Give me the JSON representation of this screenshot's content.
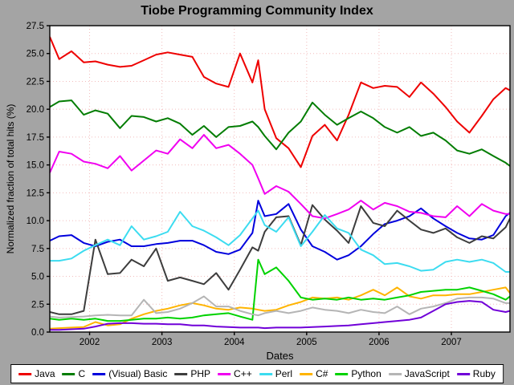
{
  "window": {
    "title": "Tiobe Programming Community Index"
  },
  "colors": {
    "background": "#a4a4a4",
    "plot_background": "#ffffff",
    "gridline": "#f2bcbc",
    "axis": "#000000"
  },
  "chart_data": {
    "type": "line",
    "title": "Tiobe Programming Community Index",
    "xlabel": "Dates",
    "ylabel": "Normalized fraction of total hits (%)",
    "xlim": [
      2001.45,
      2007.81
    ],
    "ylim": [
      0,
      27.5
    ],
    "xticks": [
      2002,
      2003,
      2004,
      2005,
      2006,
      2007
    ],
    "yticks": [
      0.0,
      2.5,
      5.0,
      7.5,
      10.0,
      12.5,
      15.0,
      17.5,
      20.0,
      22.5,
      25.0,
      27.5
    ],
    "grid": true,
    "legend_position": "bottom",
    "x": [
      2001.45,
      2001.58,
      2001.75,
      2001.92,
      2002.08,
      2002.25,
      2002.42,
      2002.58,
      2002.75,
      2002.92,
      2003.08,
      2003.25,
      2003.42,
      2003.58,
      2003.75,
      2003.92,
      2004.08,
      2004.25,
      2004.33,
      2004.42,
      2004.58,
      2004.75,
      2004.92,
      2005.08,
      2005.25,
      2005.42,
      2005.58,
      2005.75,
      2005.92,
      2006.08,
      2006.25,
      2006.42,
      2006.58,
      2006.75,
      2006.92,
      2007.08,
      2007.25,
      2007.42,
      2007.58,
      2007.75,
      2007.81
    ],
    "series": [
      {
        "name": "Java",
        "color": "#ee0000",
        "values": [
          26.5,
          24.5,
          25.2,
          24.2,
          24.3,
          24.0,
          23.8,
          23.9,
          24.4,
          24.9,
          25.1,
          24.9,
          24.7,
          22.9,
          22.3,
          22.0,
          25.0,
          22.4,
          24.4,
          20.0,
          17.4,
          16.5,
          14.8,
          17.6,
          18.6,
          17.2,
          19.5,
          22.4,
          21.9,
          22.1,
          22.0,
          21.1,
          22.4,
          21.4,
          20.2,
          18.9,
          17.9,
          19.4,
          20.9,
          21.9,
          21.7
        ]
      },
      {
        "name": "C",
        "color": "#037d03",
        "values": [
          20.2,
          20.7,
          20.8,
          19.5,
          19.9,
          19.6,
          18.3,
          19.4,
          19.3,
          18.9,
          19.2,
          18.7,
          17.7,
          18.5,
          17.5,
          18.4,
          18.5,
          18.9,
          18.4,
          17.6,
          16.4,
          17.9,
          18.9,
          20.6,
          19.5,
          18.6,
          19.2,
          19.8,
          19.2,
          18.4,
          17.9,
          18.4,
          17.6,
          17.9,
          17.2,
          16.3,
          16.0,
          16.4,
          15.8,
          15.2,
          14.9
        ]
      },
      {
        "name": "(Visual) Basic",
        "color": "#0000dd",
        "values": [
          8.2,
          8.6,
          8.7,
          8.0,
          7.7,
          8.1,
          8.3,
          7.7,
          7.7,
          7.9,
          8.0,
          8.2,
          8.2,
          7.8,
          7.2,
          7.0,
          7.4,
          8.9,
          11.8,
          10.4,
          10.6,
          11.5,
          9.2,
          7.7,
          7.2,
          6.5,
          6.9,
          7.7,
          8.8,
          9.7,
          10.0,
          10.4,
          11.1,
          10.2,
          9.5,
          8.9,
          8.4,
          8.3,
          8.7,
          10.4,
          10.7
        ]
      },
      {
        "name": "PHP",
        "color": "#3d3d3d",
        "values": [
          1.8,
          1.6,
          1.6,
          1.9,
          8.3,
          5.2,
          5.3,
          6.5,
          5.9,
          7.5,
          4.6,
          4.9,
          4.6,
          4.3,
          5.3,
          3.8,
          5.6,
          7.6,
          7.3,
          9.0,
          10.3,
          10.4,
          7.8,
          11.4,
          10.1,
          9.1,
          8.0,
          11.3,
          9.8,
          9.5,
          10.9,
          10.0,
          9.2,
          8.9,
          9.3,
          8.5,
          8.0,
          8.6,
          8.4,
          9.4,
          10.2
        ]
      },
      {
        "name": "C++",
        "color": "#f000f0",
        "values": [
          14.3,
          16.2,
          16.0,
          15.3,
          15.1,
          14.7,
          15.8,
          14.5,
          15.4,
          16.3,
          16.0,
          17.3,
          16.5,
          17.7,
          16.5,
          16.8,
          16.0,
          15.0,
          13.8,
          12.4,
          13.1,
          12.6,
          11.5,
          10.4,
          10.2,
          10.6,
          11.0,
          11.8,
          11.0,
          11.6,
          11.3,
          10.8,
          10.7,
          10.4,
          10.3,
          11.3,
          10.4,
          11.5,
          10.9,
          10.6,
          10.6
        ]
      },
      {
        "name": "Perl",
        "color": "#3cdcf0",
        "values": [
          6.4,
          6.4,
          6.6,
          7.3,
          7.8,
          8.3,
          7.8,
          9.5,
          8.3,
          8.6,
          9.0,
          10.8,
          9.5,
          9.1,
          8.5,
          7.8,
          8.7,
          10.2,
          10.9,
          9.6,
          9.0,
          10.3,
          7.7,
          9.0,
          10.5,
          9.3,
          8.9,
          7.4,
          6.9,
          6.1,
          6.2,
          5.9,
          5.5,
          5.6,
          6.3,
          6.5,
          6.3,
          6.5,
          6.2,
          5.4,
          5.4
        ]
      },
      {
        "name": "C#",
        "color": "#ffb400",
        "values": [
          0.3,
          0.35,
          0.4,
          0.45,
          0.9,
          0.6,
          0.7,
          1.2,
          1.6,
          1.9,
          2.1,
          2.4,
          2.6,
          2.4,
          2.1,
          2.0,
          2.2,
          2.1,
          2.0,
          1.9,
          2.0,
          2.4,
          2.7,
          3.1,
          3.0,
          3.1,
          2.9,
          3.3,
          3.8,
          3.3,
          4.0,
          3.2,
          3.0,
          3.3,
          3.3,
          3.4,
          3.4,
          3.6,
          3.8,
          4.0,
          3.5
        ]
      },
      {
        "name": "Python",
        "color": "#00d200",
        "values": [
          1.2,
          1.1,
          1.2,
          1.1,
          1.2,
          1.0,
          1.0,
          1.1,
          1.2,
          1.2,
          1.3,
          1.2,
          1.3,
          1.5,
          1.6,
          1.7,
          1.4,
          1.1,
          6.5,
          5.2,
          5.8,
          4.6,
          3.1,
          2.9,
          3.0,
          2.9,
          3.1,
          2.9,
          3.0,
          2.9,
          3.1,
          3.3,
          3.6,
          3.7,
          3.8,
          3.8,
          4.0,
          3.7,
          3.4,
          2.9,
          3.2
        ]
      },
      {
        "name": "JavaScript",
        "color": "#b5b5b5",
        "values": [
          1.4,
          1.3,
          1.35,
          1.4,
          1.5,
          1.55,
          1.5,
          1.5,
          2.9,
          1.7,
          1.8,
          2.1,
          2.6,
          3.2,
          2.3,
          2.3,
          1.9,
          1.6,
          1.5,
          1.7,
          1.9,
          1.7,
          1.9,
          2.2,
          2.0,
          1.9,
          1.7,
          2.0,
          1.8,
          1.7,
          2.3,
          1.6,
          2.1,
          2.3,
          2.6,
          3.0,
          3.1,
          3.1,
          3.0,
          2.6,
          2.6
        ]
      },
      {
        "name": "Ruby",
        "color": "#7000d8",
        "values": [
          0.2,
          0.2,
          0.25,
          0.3,
          0.5,
          0.75,
          0.8,
          0.8,
          0.75,
          0.75,
          0.7,
          0.7,
          0.6,
          0.6,
          0.5,
          0.45,
          0.4,
          0.4,
          0.4,
          0.35,
          0.4,
          0.4,
          0.4,
          0.45,
          0.5,
          0.55,
          0.6,
          0.7,
          0.8,
          0.9,
          1.0,
          1.1,
          1.3,
          1.9,
          2.5,
          2.7,
          2.8,
          2.7,
          2.0,
          1.8,
          1.9
        ]
      }
    ]
  }
}
